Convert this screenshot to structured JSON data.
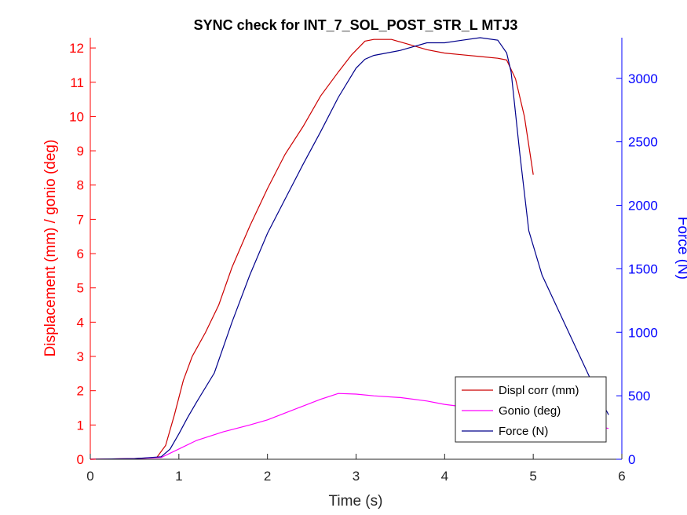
{
  "chart_data": {
    "type": "line",
    "title": "SYNC check for INT_7_SOL_POST_STR_L MTJ3",
    "xlabel": "Time (s)",
    "ylabel_left": "Displacement (mm) / gonio (deg)",
    "ylabel_right": "Force (N)",
    "xlim": [
      0,
      6
    ],
    "ylim_left": [
      0,
      12.3
    ],
    "ylim_right": [
      0,
      3320
    ],
    "x_ticks": [
      "0",
      "1",
      "2",
      "3",
      "4",
      "5",
      "6"
    ],
    "y_ticks_left": [
      "0",
      "1",
      "2",
      "3",
      "4",
      "5",
      "6",
      "7",
      "8",
      "9",
      "10",
      "11",
      "12"
    ],
    "y_ticks_right": [
      "0",
      "500",
      "1000",
      "1500",
      "2000",
      "2500",
      "3000"
    ],
    "grid": false,
    "legend_position": "bottom-right",
    "colors": {
      "left_axis": "#ff0000",
      "right_axis": "#0000ff"
    },
    "series": [
      {
        "name": "Displ corr (mm)",
        "axis": "left",
        "color": "#cc0000",
        "x": [
          0,
          0.5,
          0.75,
          0.85,
          0.95,
          1.05,
          1.15,
          1.3,
          1.45,
          1.6,
          1.8,
          2.0,
          2.2,
          2.4,
          2.6,
          2.8,
          2.95,
          3.1,
          3.2,
          3.4,
          3.6,
          3.8,
          4.0,
          4.2,
          4.4,
          4.6,
          4.7,
          4.8,
          4.9,
          5.0
        ],
        "y": [
          0,
          0.02,
          0.05,
          0.4,
          1.3,
          2.3,
          3.0,
          3.7,
          4.5,
          5.6,
          6.8,
          7.9,
          8.9,
          9.7,
          10.6,
          11.3,
          11.8,
          12.2,
          12.25,
          12.25,
          12.1,
          11.95,
          11.85,
          11.8,
          11.75,
          11.7,
          11.65,
          11.1,
          10.0,
          8.3
        ]
      },
      {
        "name": "Gonio (deg)",
        "axis": "left",
        "color": "#ff00ff",
        "x": [
          0,
          0.5,
          0.8,
          1.0,
          1.2,
          1.5,
          1.8,
          2.0,
          2.2,
          2.4,
          2.6,
          2.8,
          3.0,
          3.2,
          3.5,
          3.8,
          4.0,
          4.3,
          4.6,
          4.9,
          5.2,
          5.5,
          5.85
        ],
        "y": [
          0,
          0.02,
          0.05,
          0.3,
          0.55,
          0.8,
          1.0,
          1.15,
          1.35,
          1.55,
          1.75,
          1.92,
          1.9,
          1.85,
          1.8,
          1.7,
          1.6,
          1.5,
          1.4,
          1.3,
          1.2,
          1.05,
          0.9
        ]
      },
      {
        "name": "Force (N)",
        "axis": "right",
        "color": "#00008b",
        "x": [
          0,
          0.5,
          0.8,
          0.9,
          1.0,
          1.1,
          1.2,
          1.4,
          1.6,
          1.8,
          2.0,
          2.2,
          2.4,
          2.6,
          2.8,
          3.0,
          3.1,
          3.2,
          3.5,
          3.8,
          4.0,
          4.2,
          4.4,
          4.6,
          4.7,
          4.75,
          4.85,
          4.95,
          5.1,
          5.3,
          5.5,
          5.7,
          5.85
        ],
        "y": [
          0,
          5,
          20,
          80,
          200,
          330,
          450,
          680,
          1080,
          1450,
          1780,
          2050,
          2320,
          2580,
          2850,
          3080,
          3150,
          3180,
          3220,
          3280,
          3280,
          3300,
          3320,
          3300,
          3200,
          3050,
          2400,
          1800,
          1450,
          1150,
          850,
          550,
          350
        ]
      }
    ]
  }
}
